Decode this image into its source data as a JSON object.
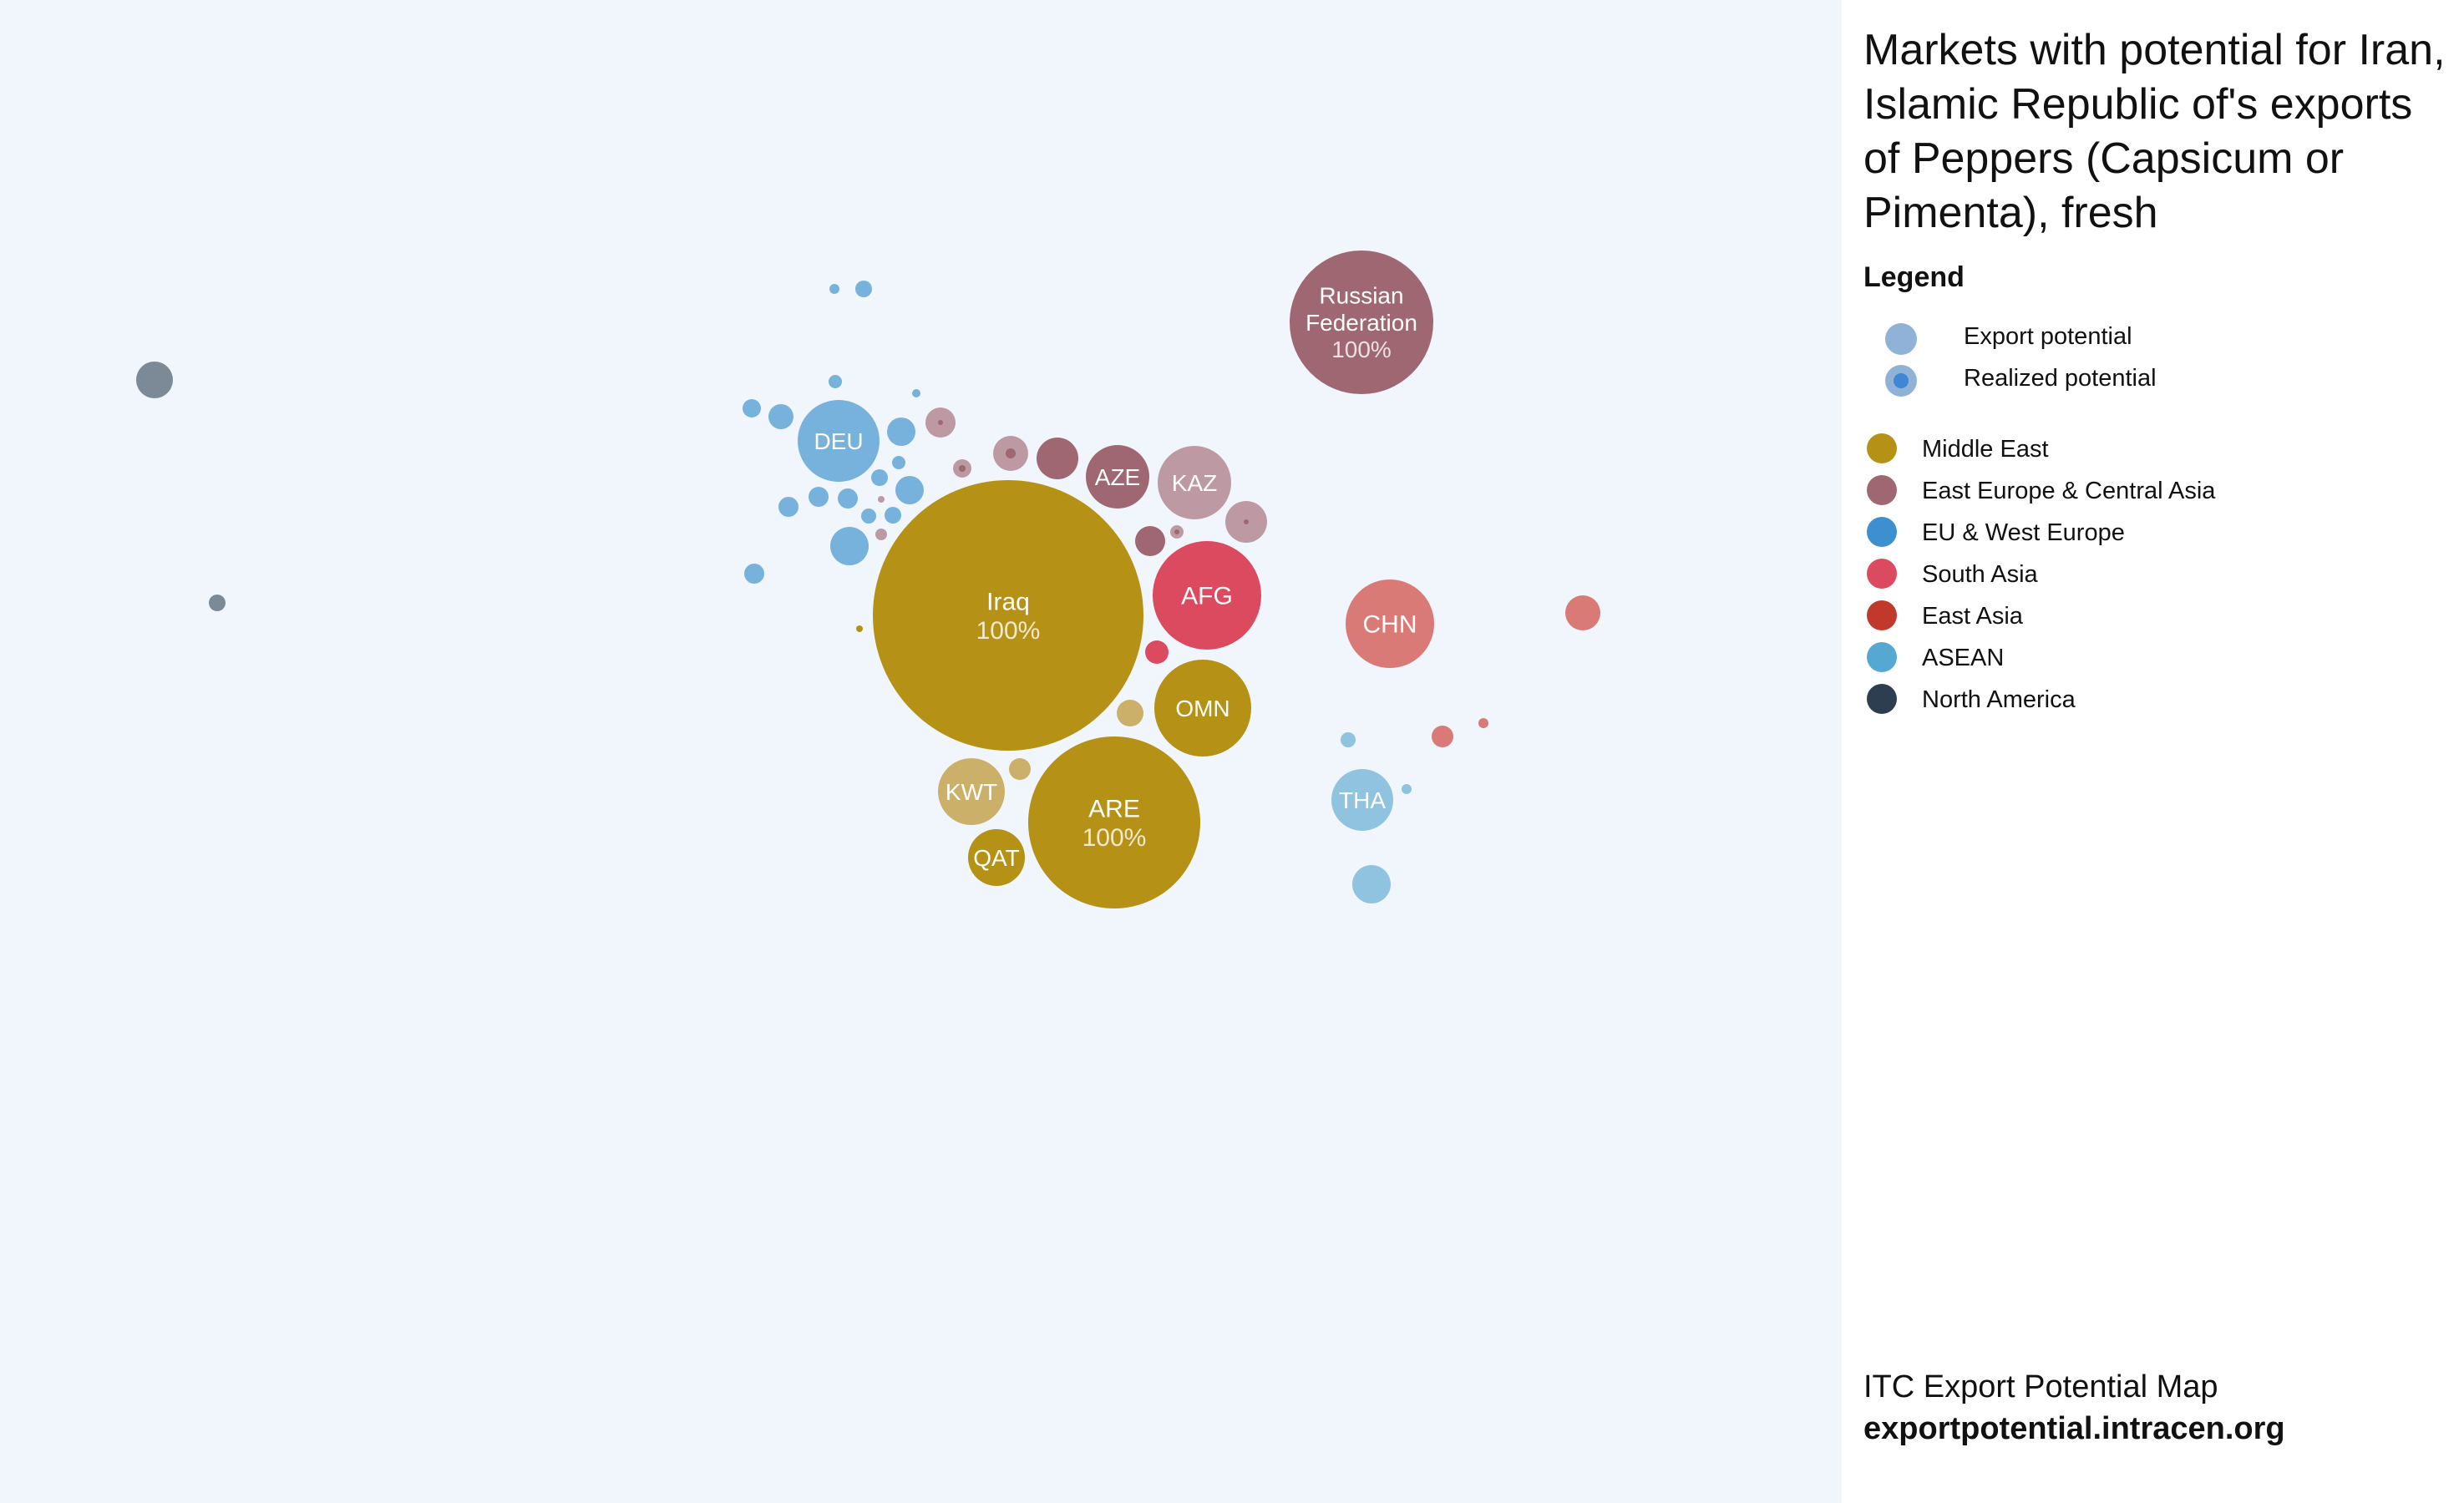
{
  "panel": {
    "title": "Markets with potential for Iran, Islamic Republic of's exports of Peppers (Capsicum or Pimenta), fresh",
    "legend_heading": "Legend",
    "footer_org": "ITC Export Potential Map",
    "footer_url": "exportpotential.intracen.org"
  },
  "legend": {
    "potential_items": [
      {
        "label": "Export potential",
        "icon": "export-potential-circle",
        "color": "#8fb2d6"
      },
      {
        "label": "Realized potential",
        "icon": "realized-potential-circle",
        "color": "#3f86d6"
      }
    ],
    "regions": [
      {
        "label": "Middle East",
        "color": "#b59116"
      },
      {
        "label": "East Europe & Central Asia",
        "color": "#9e6772"
      },
      {
        "label": "EU & West Europe",
        "color": "#3d8fd0"
      },
      {
        "label": "South Asia",
        "color": "#dc4a60"
      },
      {
        "label": "East Asia",
        "color": "#c0392b"
      },
      {
        "label": "ASEAN",
        "color": "#55a8d2"
      },
      {
        "label": "North America",
        "color": "#2c3e50"
      }
    ]
  },
  "chart_data": {
    "type": "bubble",
    "colors": {
      "middle_east": "#b59116",
      "middle_east_light": "#cbb06a",
      "east_europe": "#9e6772",
      "east_europe_light": "#bd9aa3",
      "eu": "#76b2dc",
      "south_asia": "#dc4a60",
      "east_asia": "#d97a76",
      "asean": "#8fc3df",
      "north_america": "#7c8a98"
    },
    "bubbles": [
      {
        "label": "Iraq",
        "value_label": "100%",
        "region": "middle_east"
      },
      {
        "label": "ARE",
        "value_label": "100%",
        "region": "middle_east"
      },
      {
        "label": "OMN",
        "value_label": "",
        "region": "middle_east"
      },
      {
        "label": "KWT",
        "value_label": "",
        "region": "middle_east_light"
      },
      {
        "label": "QAT",
        "value_label": "",
        "region": "middle_east"
      },
      {
        "label": "Russian Federation",
        "value_label": "100%",
        "region": "east_europe"
      },
      {
        "label": "AZE",
        "value_label": "",
        "region": "east_europe"
      },
      {
        "label": "KAZ",
        "value_label": "",
        "region": "east_europe_light"
      },
      {
        "label": "AFG",
        "value_label": "",
        "region": "south_asia"
      },
      {
        "label": "CHN",
        "value_label": "",
        "region": "east_asia"
      },
      {
        "label": "DEU",
        "value_label": "",
        "region": "eu"
      },
      {
        "label": "THA",
        "value_label": "",
        "region": "asean"
      }
    ]
  }
}
